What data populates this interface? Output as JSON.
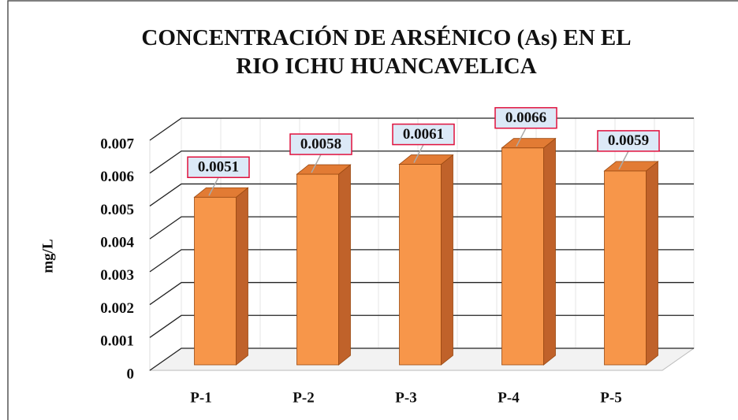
{
  "chart_data": {
    "type": "bar3d",
    "title": "CONCENTRACIÓN DE ARSÉNICO (As) EN EL RIO ICHU HUANCAVELICA",
    "y_label": "mg/L",
    "categories": [
      "P-1",
      "P-2",
      "P-3",
      "P-4",
      "P-5"
    ],
    "values": [
      0.0051,
      0.0058,
      0.0061,
      0.0066,
      0.0059
    ],
    "color": "#f7964a",
    "ylim": [
      0,
      0.007
    ],
    "yticks": [
      0,
      0.001,
      0.002,
      0.003,
      0.004,
      0.005,
      0.006,
      0.007
    ],
    "grid": true
  }
}
